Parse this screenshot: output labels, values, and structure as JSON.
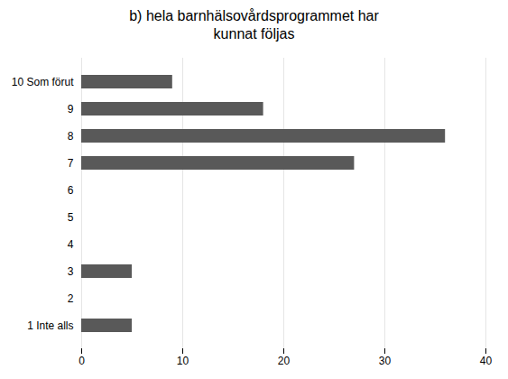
{
  "chart_data": {
    "type": "bar",
    "orientation": "horizontal",
    "title": "b) hela barnhälsovårdsprogrammet har\nkunnat följas",
    "categories": [
      "10 Som förut",
      "9",
      "8",
      "7",
      "6",
      "5",
      "4",
      "3",
      "2",
      "1 Inte alls"
    ],
    "values": [
      9,
      18,
      36,
      27,
      0,
      0,
      0,
      5,
      0,
      5
    ],
    "color": "#595959",
    "xlim": [
      0,
      40
    ],
    "xticks": [
      0,
      10,
      20,
      30,
      40
    ],
    "grid": true
  }
}
